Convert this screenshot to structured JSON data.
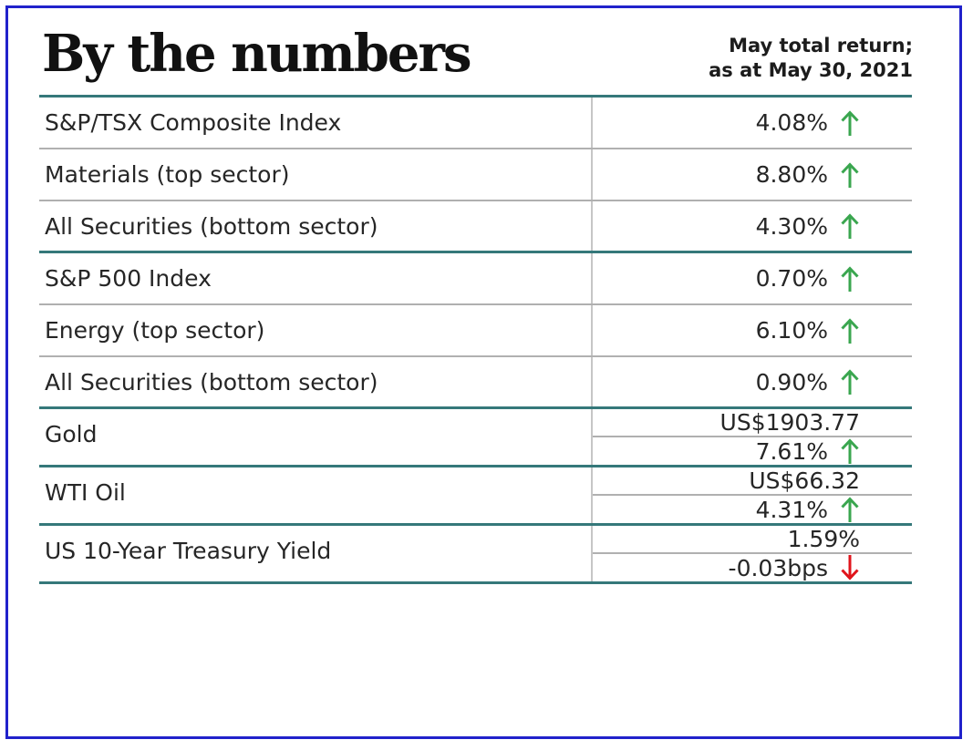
{
  "chart_data": {
    "type": "table",
    "title": "By the numbers",
    "subtitle_lines": [
      "May total return;",
      "as at May 30, 2021"
    ],
    "groups": [
      {
        "rows": [
          {
            "label": "S&P/TSX Composite Index",
            "cells": [
              {
                "text": "4.08%",
                "arrow": "up"
              }
            ]
          },
          {
            "label": "Materials (top sector)",
            "cells": [
              {
                "text": "8.80%",
                "arrow": "up"
              }
            ]
          },
          {
            "label": "All Securities (bottom sector)",
            "cells": [
              {
                "text": "4.30%",
                "arrow": "up"
              }
            ]
          }
        ]
      },
      {
        "rows": [
          {
            "label": "S&P 500 Index",
            "cells": [
              {
                "text": "0.70%",
                "arrow": "up"
              }
            ]
          },
          {
            "label": "Energy (top sector)",
            "cells": [
              {
                "text": "6.10%",
                "arrow": "up"
              }
            ]
          },
          {
            "label": "All Securities (bottom sector)",
            "cells": [
              {
                "text": "0.90%",
                "arrow": "up"
              }
            ]
          }
        ]
      },
      {
        "rows": [
          {
            "label": "Gold",
            "cells": [
              {
                "text": "US$1903.77",
                "arrow": "none"
              },
              {
                "text": "7.61%",
                "arrow": "up"
              }
            ]
          }
        ]
      },
      {
        "rows": [
          {
            "label": "WTI Oil",
            "cells": [
              {
                "text": "US$66.32",
                "arrow": "none"
              },
              {
                "text": "4.31%",
                "arrow": "up"
              }
            ]
          }
        ]
      },
      {
        "rows": [
          {
            "label": "US 10-Year Treasury Yield",
            "cells": [
              {
                "text": "1.59%",
                "arrow": "none"
              },
              {
                "text": "-0.03bps",
                "arrow": "down"
              }
            ]
          }
        ]
      }
    ]
  },
  "colors": {
    "teal_rule": "#35787a",
    "gray_rule": "#b0b0b0",
    "column_divider": "#c6c6c6",
    "frame_blue": "#2122cb",
    "up_green": "#3aa64f",
    "down_red": "#e0151c"
  }
}
